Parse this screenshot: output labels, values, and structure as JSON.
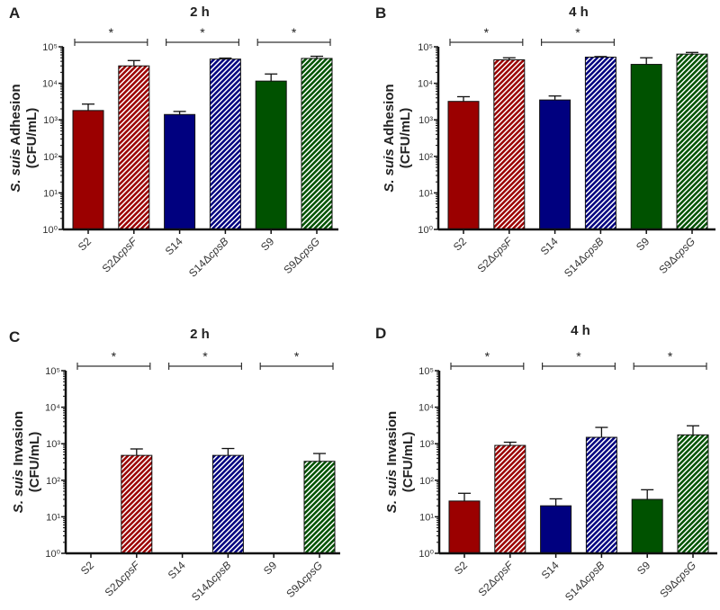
{
  "chart_data": [
    {
      "type": "bar",
      "panel_letter": "A",
      "title": "2 h",
      "ylabel_italic": "S. suis",
      "ylabel_rest": "Adhesion",
      "ylabel_unit": "(CFU/mL)",
      "yscale": "log",
      "ylim": [
        1,
        100000
      ],
      "ytick_labels": [
        "10⁰",
        "10¹",
        "10²",
        "10³",
        "10⁴",
        "10⁵"
      ],
      "categories": [
        "S2",
        "S2ΔcpsF",
        "S14",
        "S14ΔcpsB",
        "S9",
        "S9ΔcpsG"
      ],
      "values": [
        1800,
        30000,
        1400,
        46000,
        11500,
        48000
      ],
      "error_upper": [
        2700,
        42000,
        1700,
        49000,
        18000,
        55000
      ],
      "significance": [
        {
          "pair": [
            0,
            1
          ],
          "label": "*"
        },
        {
          "pair": [
            2,
            3
          ],
          "label": "*"
        },
        {
          "pair": [
            4,
            5
          ],
          "label": "*"
        }
      ]
    },
    {
      "type": "bar",
      "panel_letter": "B",
      "title": "4 h",
      "ylabel_italic": "S. suis",
      "ylabel_rest": "Adhesion",
      "ylabel_unit": "(CFU/mL)",
      "yscale": "log",
      "ylim": [
        1,
        100000
      ],
      "ytick_labels": [
        "10⁰",
        "10¹",
        "10²",
        "10³",
        "10⁴",
        "10⁵"
      ],
      "categories": [
        "S2",
        "S2ΔcpsF",
        "S14",
        "S14ΔcpsB",
        "S9",
        "S9ΔcpsG"
      ],
      "values": [
        3200,
        44000,
        3500,
        52000,
        33000,
        63000
      ],
      "error_upper": [
        4300,
        50000,
        4500,
        54000,
        50000,
        70000
      ],
      "significance": [
        {
          "pair": [
            0,
            1
          ],
          "label": "*"
        },
        {
          "pair": [
            2,
            3
          ],
          "label": "*"
        }
      ]
    },
    {
      "type": "bar",
      "panel_letter": "C",
      "title": "2 h",
      "ylabel_italic": "S. suis",
      "ylabel_rest": "Invasion",
      "ylabel_unit": "(CFU/mL)",
      "yscale": "log",
      "ylim": [
        1,
        100000
      ],
      "ytick_labels": [
        "10⁰",
        "10¹",
        "10²",
        "10³",
        "10⁴",
        "10⁵"
      ],
      "categories": [
        "S2",
        "S2ΔcpsF",
        "S14",
        "S14ΔcpsB",
        "S9",
        "S9ΔcpsG"
      ],
      "values": [
        null,
        480,
        null,
        480,
        null,
        330
      ],
      "error_upper": [
        null,
        720,
        null,
        740,
        null,
        540
      ],
      "significance": [
        {
          "pair": [
            0,
            1
          ],
          "label": "*"
        },
        {
          "pair": [
            2,
            3
          ],
          "label": "*"
        },
        {
          "pair": [
            4,
            5
          ],
          "label": "*"
        }
      ]
    },
    {
      "type": "bar",
      "panel_letter": "D",
      "title": "4 h",
      "ylabel_italic": "S. suis",
      "ylabel_rest": "Invasion",
      "ylabel_unit": "(CFU/mL)",
      "yscale": "log",
      "ylim": [
        1,
        100000
      ],
      "ytick_labels": [
        "10⁰",
        "10¹",
        "10²",
        "10³",
        "10⁴",
        "10⁵"
      ],
      "categories": [
        "S2",
        "S2ΔcpsF",
        "S14",
        "S14ΔcpsB",
        "S9",
        "S9ΔcpsG"
      ],
      "values": [
        27,
        900,
        20,
        1500,
        30,
        1750
      ],
      "error_upper": [
        44,
        1100,
        31,
        2800,
        55,
        3100
      ],
      "significance": [
        {
          "pair": [
            0,
            1
          ],
          "label": "*"
        },
        {
          "pair": [
            2,
            3
          ],
          "label": "*"
        },
        {
          "pair": [
            4,
            5
          ],
          "label": "*"
        }
      ]
    }
  ],
  "colors": {
    "S2": "#9b0000",
    "S14": "#00007f",
    "S9": "#005200",
    "hatch_stripe": "#ffffff"
  }
}
